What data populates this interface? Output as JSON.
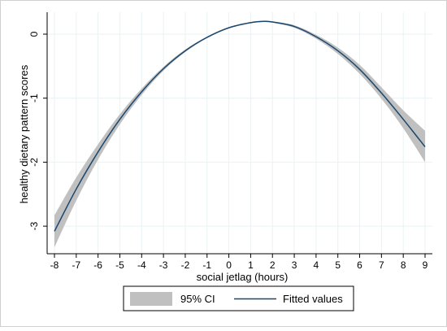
{
  "chart_data": {
    "type": "line",
    "title": "",
    "xlabel": "social jetlag (hours)",
    "ylabel": "healthy dietary pattern scores",
    "xlim": [
      -8,
      9
    ],
    "ylim": [
      -3.35,
      0.35
    ],
    "xticks": [
      -8,
      -7,
      -6,
      -5,
      -4,
      -3,
      -2,
      -1,
      0,
      1,
      2,
      3,
      4,
      5,
      6,
      7,
      8,
      9
    ],
    "yticks": [
      0,
      -1,
      -2,
      -3
    ],
    "grid": true,
    "legend_position": "bottom",
    "series": [
      {
        "name": "Fitted values",
        "type": "line",
        "x": [
          -8,
          -7,
          -6,
          -5,
          -4,
          -3,
          -2,
          -1,
          0,
          1,
          1.6,
          2,
          3,
          4,
          5,
          6,
          7,
          8,
          9
        ],
        "y": [
          -3.08,
          -2.42,
          -1.84,
          -1.33,
          -0.9,
          -0.54,
          -0.26,
          -0.05,
          0.1,
          0.18,
          0.2,
          0.19,
          0.12,
          -0.04,
          -0.26,
          -0.55,
          -0.92,
          -1.33,
          -1.76
        ]
      },
      {
        "name": "95% CI",
        "type": "band",
        "x": [
          -8,
          -7,
          -6,
          -5,
          -4,
          -3,
          -2,
          -1,
          0,
          1,
          1.6,
          2,
          3,
          4,
          5,
          6,
          7,
          8,
          9
        ],
        "lower": [
          -3.33,
          -2.6,
          -1.96,
          -1.41,
          -0.95,
          -0.57,
          -0.28,
          -0.06,
          0.09,
          0.17,
          0.19,
          0.18,
          0.1,
          -0.07,
          -0.31,
          -0.62,
          -1.01,
          -1.47,
          -2.0
        ],
        "upper": [
          -2.83,
          -2.24,
          -1.72,
          -1.25,
          -0.85,
          -0.51,
          -0.24,
          -0.04,
          0.11,
          0.19,
          0.21,
          0.2,
          0.14,
          -0.01,
          -0.21,
          -0.48,
          -0.83,
          -1.19,
          -1.51
        ]
      }
    ]
  },
  "legend": {
    "ci_label": "95% CI",
    "fit_label": "Fitted values"
  },
  "colors": {
    "line": "#1a476f",
    "band": "#c0c0c0",
    "grid": "#eaf2f3",
    "axis": "#000000"
  }
}
